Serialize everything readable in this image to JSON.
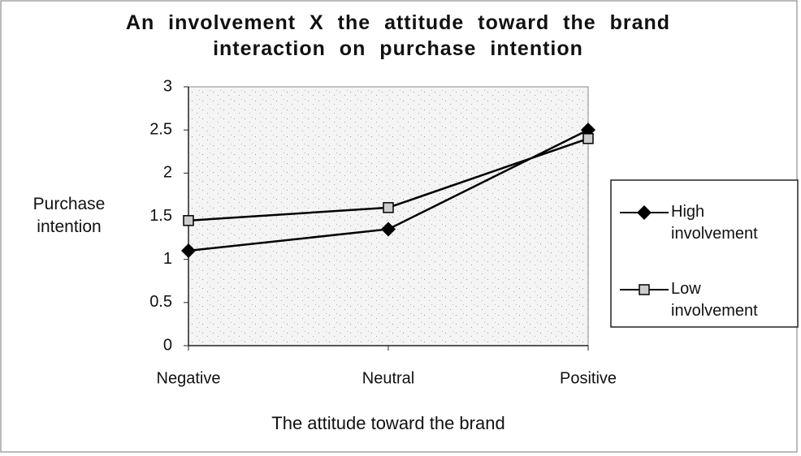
{
  "chart_data": {
    "type": "line",
    "title": "An involvement X the attitude toward the brand interaction on purchase intention",
    "x_label": "The attitude toward the brand",
    "y_label": "Purchase intention",
    "categories": [
      "Negative",
      "Neutral",
      "Positive"
    ],
    "series": [
      {
        "name": "High involvement",
        "color": "#000000",
        "marker": "diamond",
        "values": [
          1.1,
          1.35,
          2.5
        ]
      },
      {
        "name": "Low involvement",
        "color": "#000000",
        "marker": "square",
        "values": [
          1.45,
          1.6,
          2.4
        ]
      }
    ],
    "ylim": [
      0,
      3
    ],
    "yticks": [
      0,
      0.5,
      1,
      1.5,
      2,
      2.5,
      3
    ],
    "grid": false,
    "legend": "right"
  }
}
